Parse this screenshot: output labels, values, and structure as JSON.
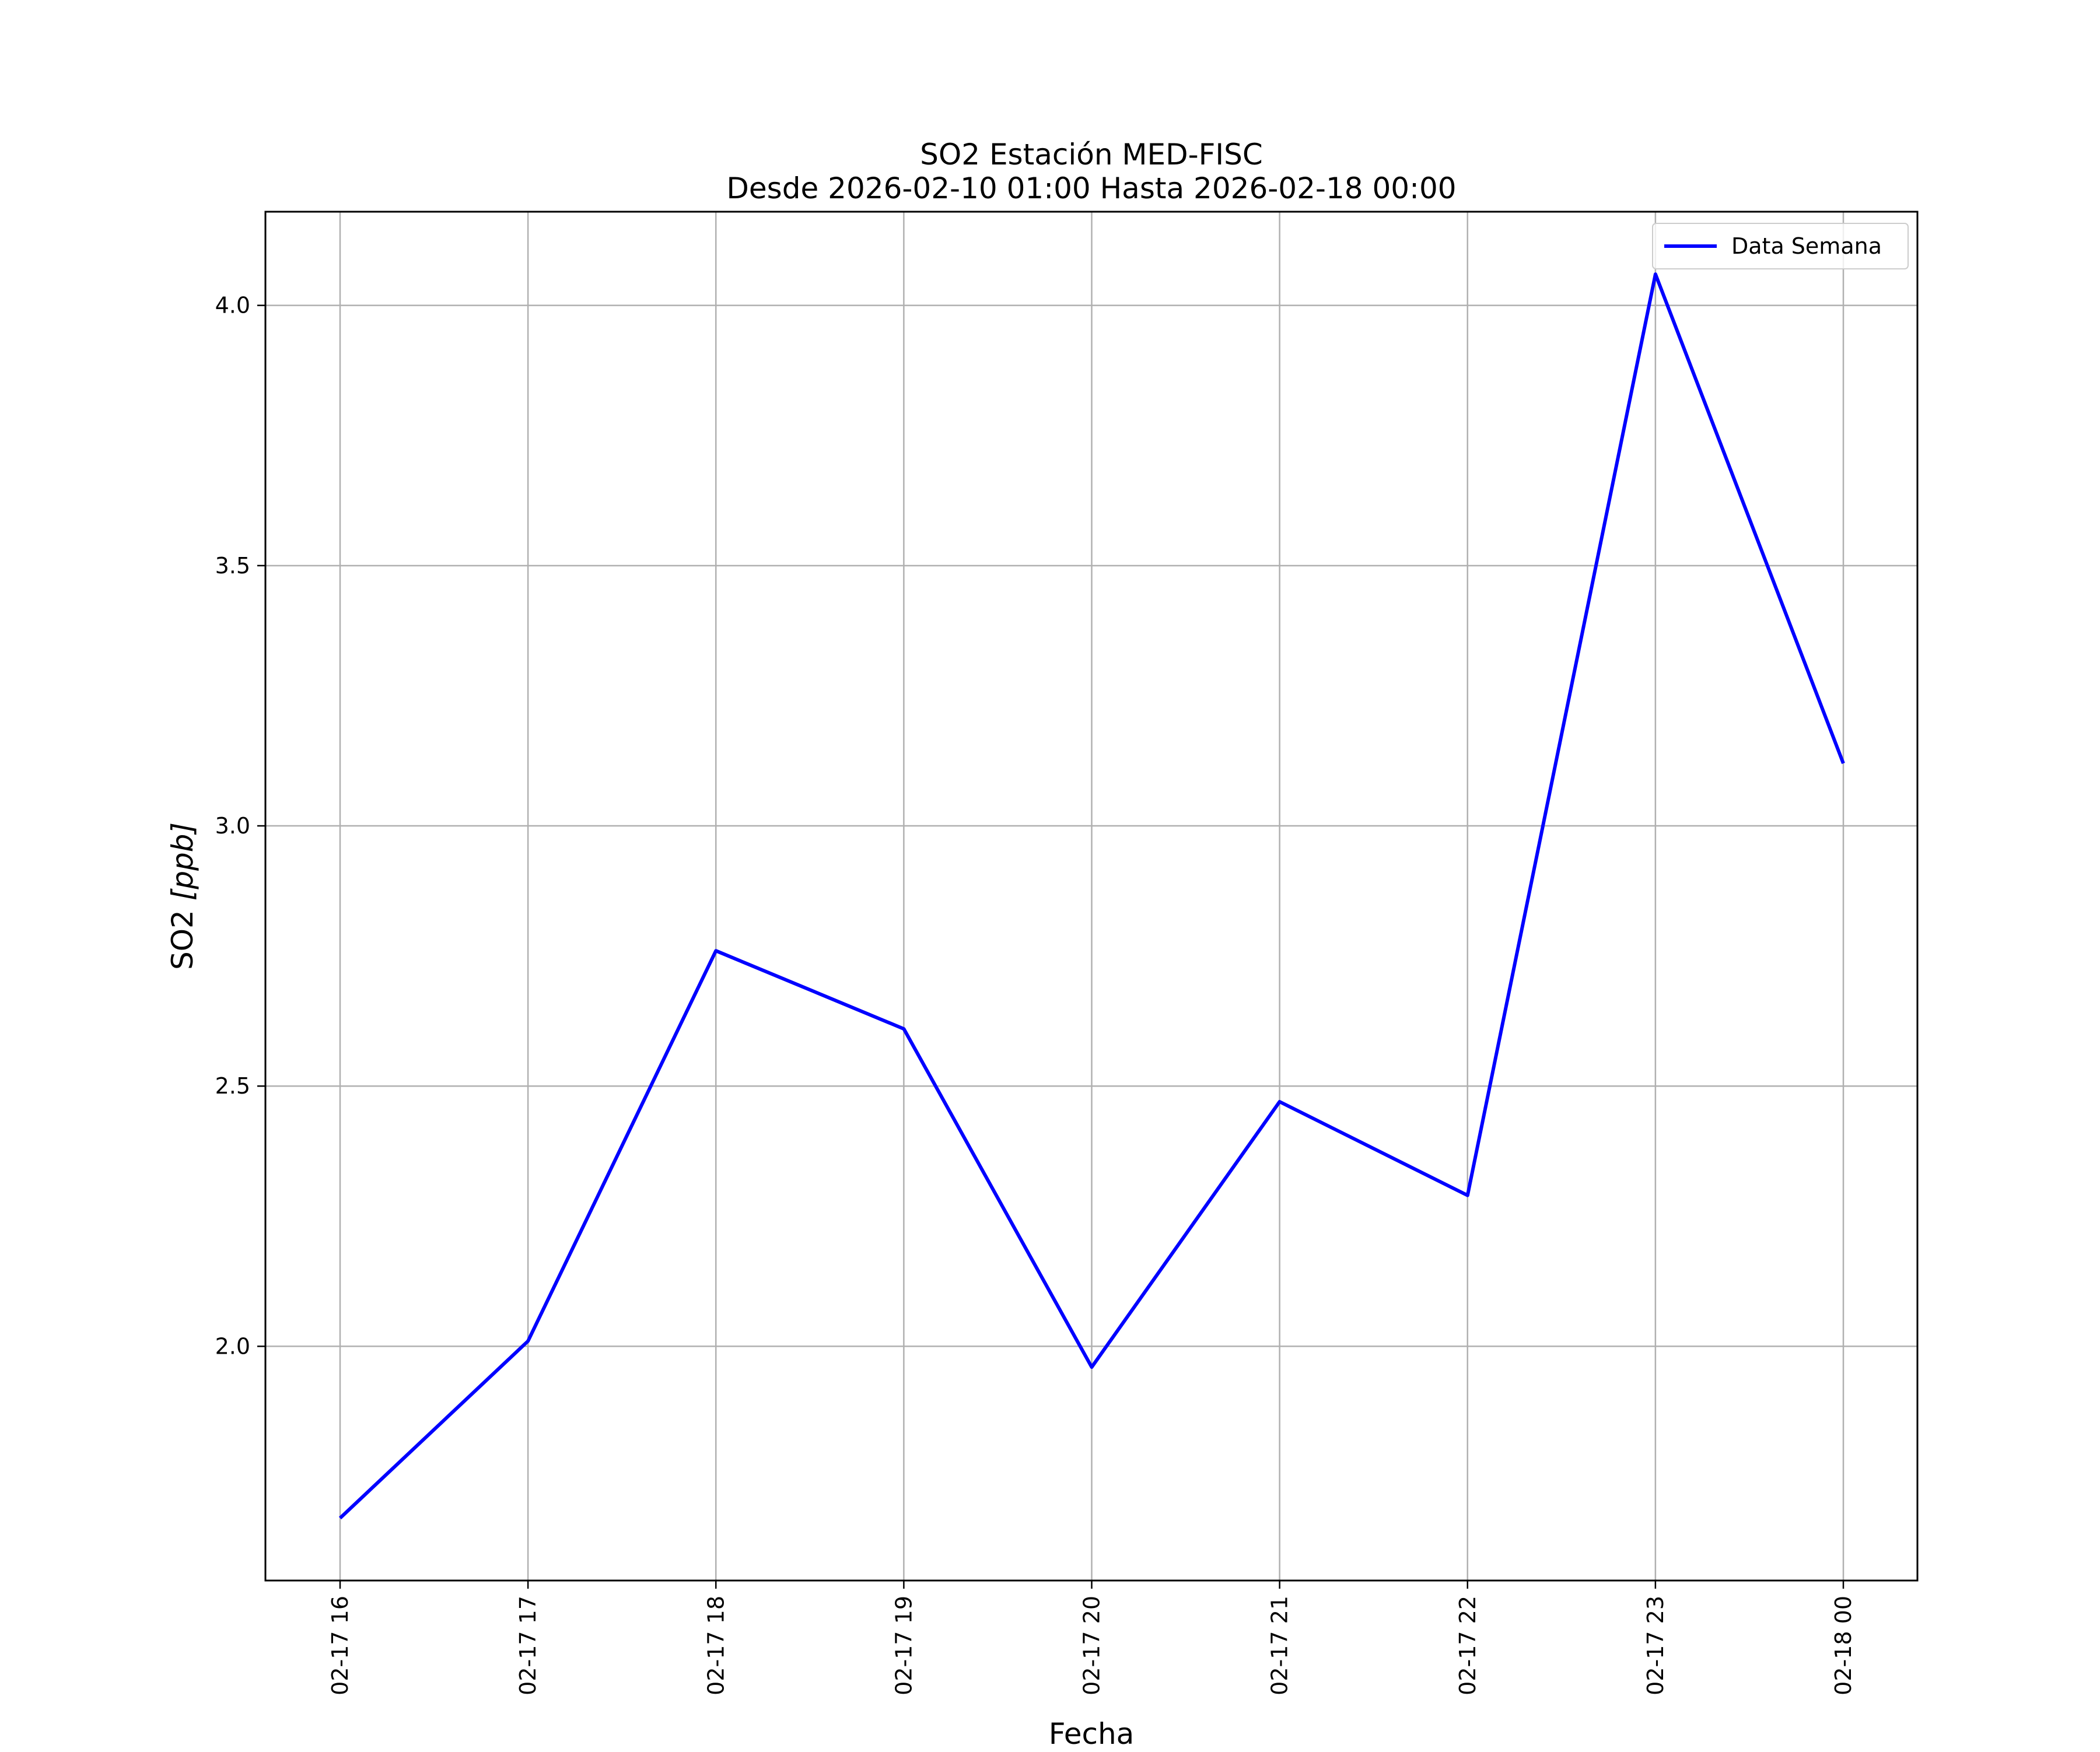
{
  "chart_data": {
    "type": "line",
    "title": "SO2 Estación MED-FISC",
    "subtitle": "Desde 2026-02-10 01:00 Hasta 2026-02-18 00:00",
    "xlabel": "Fecha",
    "ylabel_main": "SO2 ",
    "ylabel_unit": "[ppb]",
    "ylim": [
      1.55,
      4.18
    ],
    "grid": true,
    "legend_position": "top-right",
    "categories": [
      "02-17 16",
      "02-17 17",
      "02-17 18",
      "02-17 19",
      "02-17 20",
      "02-17 21",
      "02-17 22",
      "02-17 23",
      "02-18 00"
    ],
    "y_ticks": [
      {
        "value": 2.0,
        "label": "2.0"
      },
      {
        "value": 2.5,
        "label": "2.5"
      },
      {
        "value": 3.0,
        "label": "3.0"
      },
      {
        "value": 3.5,
        "label": "3.5"
      },
      {
        "value": 4.0,
        "label": "4.0"
      }
    ],
    "series": [
      {
        "name": "Data Semana",
        "color": "#0000ff",
        "values": [
          1.67,
          2.01,
          2.76,
          2.61,
          1.96,
          2.47,
          2.29,
          4.06,
          3.12
        ]
      }
    ]
  }
}
